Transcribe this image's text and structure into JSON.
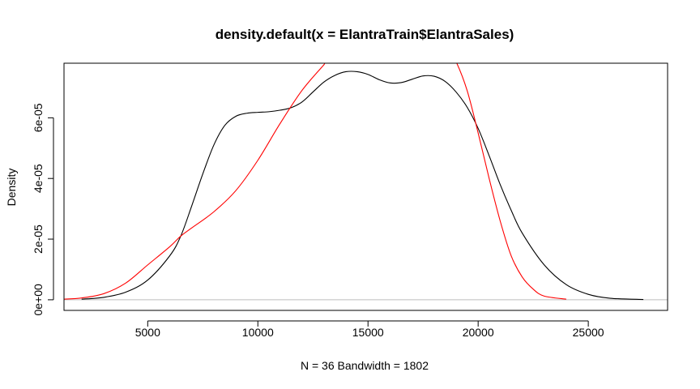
{
  "chart_data": {
    "type": "line",
    "title": "density.default(x = ElantraTrain$ElantraSales)",
    "xlabel": "N = 36   Bandwidth = 1802",
    "ylabel": "Density",
    "xlim": [
      1200,
      28600
    ],
    "ylim": [
      -3.5e-06,
      7.8e-05
    ],
    "x_ticks": [
      5000,
      10000,
      15000,
      20000,
      25000
    ],
    "x_tick_labels": [
      "5000",
      "10000",
      "15000",
      "20000",
      "25000"
    ],
    "y_ticks": [
      0,
      2e-05,
      4e-05,
      6e-05
    ],
    "y_tick_labels": [
      "0e+00",
      "2e-05",
      "4e-05",
      "6e-05"
    ],
    "baseline": 0,
    "grid": false,
    "legend": "none",
    "colors": {
      "density": "#000000",
      "normal": "#ff0000",
      "baseline": "#bebebe"
    },
    "series": [
      {
        "color": "#000000",
        "x": [
          2000,
          3000,
          4000,
          5000,
          6000,
          6500,
          7000,
          7500,
          8000,
          8500,
          9000,
          9500,
          10000,
          10500,
          11000,
          11500,
          12000,
          12500,
          13000,
          13500,
          14000,
          14500,
          15000,
          15500,
          16000,
          16500,
          17000,
          17500,
          18000,
          18500,
          19000,
          19500,
          20000,
          20500,
          21000,
          21500,
          22000,
          23000,
          24000,
          25000,
          26000,
          27500
        ],
        "y": [
          2e-07,
          8e-07,
          2.5e-06,
          6.5e-06,
          1.45e-05,
          2.1e-05,
          3.1e-05,
          4.15e-05,
          5.1e-05,
          5.75e-05,
          6.05e-05,
          6.15e-05,
          6.18e-05,
          6.2e-05,
          6.25e-05,
          6.33e-05,
          6.52e-05,
          6.85e-05,
          7.18e-05,
          7.4e-05,
          7.52e-05,
          7.52e-05,
          7.43e-05,
          7.26e-05,
          7.15e-05,
          7.16e-05,
          7.27e-05,
          7.38e-05,
          7.37e-05,
          7.2e-05,
          6.85e-05,
          6.35e-05,
          5.65e-05,
          4.75e-05,
          3.8e-05,
          2.95e-05,
          2.2e-05,
          1.15e-05,
          5e-06,
          1.8e-06,
          5e-07,
          1e-07
        ]
      },
      {
        "color": "#ff0000",
        "x": [
          1200,
          2000,
          3000,
          4000,
          5000,
          6000,
          6500,
          7000,
          8000,
          9000,
          10000,
          11000,
          12000,
          13000,
          13300,
          18800,
          19000,
          19500,
          20000,
          20500,
          21000,
          21500,
          22000,
          22500,
          23000,
          24000
        ],
        "y": [
          2e-07,
          6e-07,
          2e-06,
          5.5e-06,
          1.15e-05,
          1.75e-05,
          2.1e-05,
          2.37e-05,
          2.9e-05,
          3.6e-05,
          4.6e-05,
          5.8e-05,
          6.9e-05,
          7.75e-05,
          8e-05,
          8e-05,
          7.85e-05,
          6.9e-05,
          5.5e-05,
          4e-05,
          2.6e-05,
          1.45e-05,
          7.5e-06,
          3.5e-06,
          1.2e-06,
          2e-07
        ]
      }
    ]
  }
}
